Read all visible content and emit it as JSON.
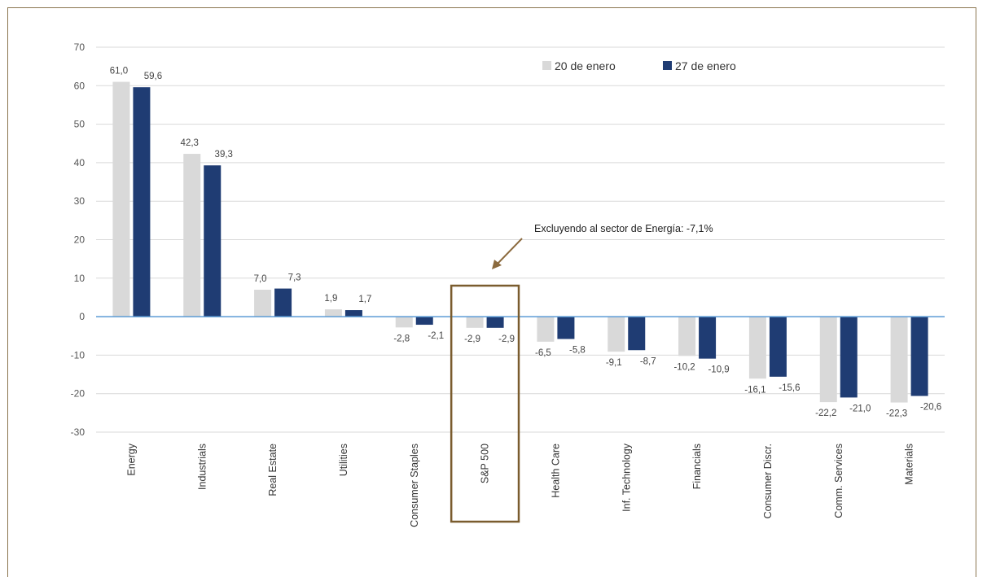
{
  "chart_data": {
    "type": "bar",
    "title": "",
    "xlabel": "",
    "ylabel": "",
    "ylim": [
      -30,
      70
    ],
    "yticks": [
      -30,
      -20,
      -10,
      0,
      10,
      20,
      30,
      40,
      50,
      60,
      70
    ],
    "grid": true,
    "legend_position": "top-right",
    "categories": [
      "Energy",
      "Industrials",
      "Real Estate",
      "Utilities",
      "Consumer Staples",
      "S&P 500",
      "Health Care",
      "Inf. Technology",
      "Financials",
      "Consumer Discr.",
      "Comm. Services",
      "Materials"
    ],
    "series": [
      {
        "name": "20 de enero",
        "color": "#d9d9d9",
        "values": [
          61.0,
          42.3,
          7.0,
          1.9,
          -2.8,
          -2.9,
          -6.5,
          -9.1,
          -10.2,
          -16.1,
          -22.2,
          -22.3
        ],
        "labels": [
          "61,0",
          "42,3",
          "7,0",
          "1,9",
          "-2,8",
          "-2,9",
          "-6,5",
          "-9,1",
          "-10,2",
          "-16,1",
          "-22,2",
          "-22,3"
        ]
      },
      {
        "name": "27 de enero",
        "color": "#1f3c73",
        "values": [
          59.6,
          39.3,
          7.3,
          1.7,
          -2.1,
          -2.9,
          -5.8,
          -8.7,
          -10.9,
          -15.6,
          -21.0,
          -20.6
        ],
        "labels": [
          "59,6",
          "39,3",
          "7,3",
          "1,7",
          "-2,1",
          "-2,9",
          "-5,8",
          "-8,7",
          "-10,9",
          "-15,6",
          "-21,0",
          "-20,6"
        ]
      }
    ],
    "highlight_category": "S&P 500",
    "annotation": "Excluyendo al sector de Energía: -7,1%",
    "colors": {
      "axis_zero": "#5b9bd5",
      "grid": "#d9d9d9",
      "highlight_box": "#7a5c2e",
      "arrow": "#8b6a3e"
    }
  }
}
